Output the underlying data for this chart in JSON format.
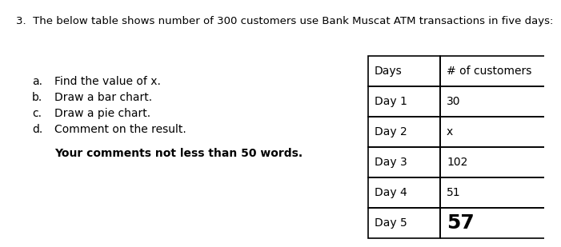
{
  "title_num": "3.",
  "title_text": "The below table shows number of 300 customers use Bank Muscat ATM transactions in five days:",
  "left_items": [
    [
      "a.",
      "Find the value of x."
    ],
    [
      "b.",
      "Draw a bar chart."
    ],
    [
      "c.",
      "Draw a pie chart."
    ],
    [
      "d.",
      "Comment on the result."
    ]
  ],
  "bold_text": "Your comments not less than 50 words.",
  "table_headers": [
    "Days",
    "# of customers"
  ],
  "table_rows": [
    [
      "Day 1",
      "30"
    ],
    [
      "Day 2",
      "x"
    ],
    [
      "Day 3",
      "102"
    ],
    [
      "Day 4",
      "51"
    ],
    [
      "Day 5",
      "57"
    ]
  ],
  "background_color": "#ffffff",
  "table_border_color": "#000000",
  "text_color": "#000000",
  "title_fontsize": 9.5,
  "body_fontsize": 10,
  "bold_fontsize": 10,
  "table_header_fontsize": 10,
  "table_body_fontsize": 10,
  "day5_fontsize": 18
}
